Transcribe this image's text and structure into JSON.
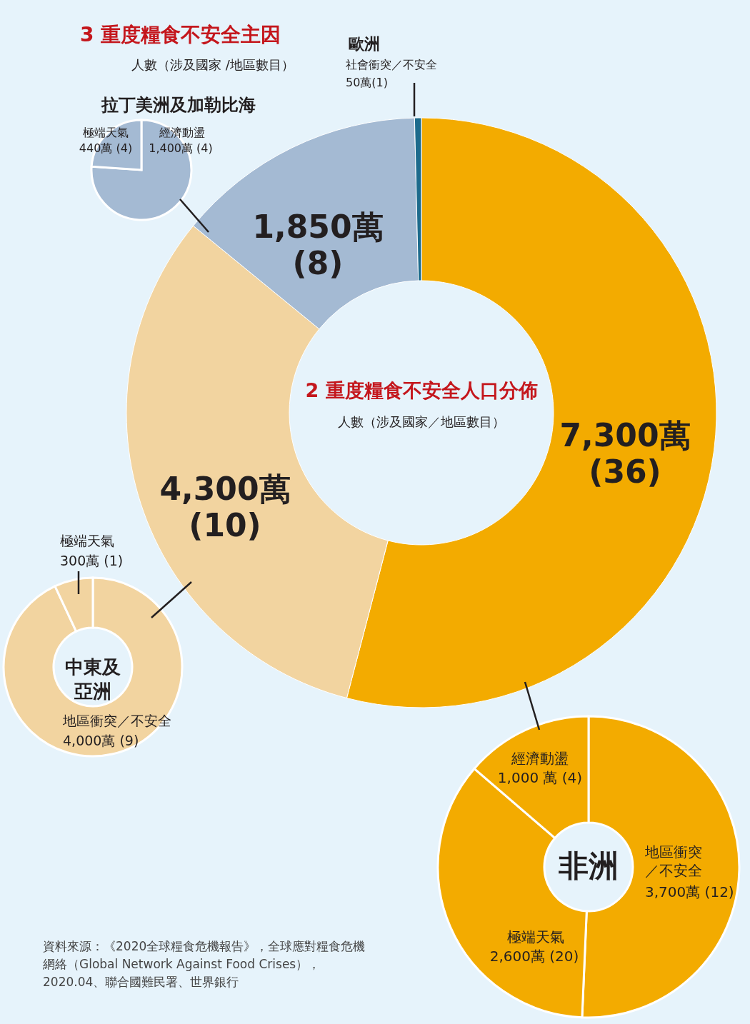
{
  "chart_data": [
    {
      "type": "other",
      "title": "3 重度糧食不安全主因",
      "subtitle": "人數（涉及國家 /地區數目）",
      "annotations": [
        "資料來源：《2020全球糧食危機報告》，全球應對糧食危機網絡（Global Network Against Food Crises），2020.04、聯合國難民署、世界銀行"
      ]
    },
    {
      "type": "other",
      "title": "歐洲",
      "annotations": [
        "社會衝突／不安全",
        "50萬(1)"
      ]
    },
    {
      "type": "pie",
      "title": "拉丁美洲及加勒比海",
      "categories": [
        "經濟動盪",
        "極端天氣"
      ],
      "values": [
        1400,
        440
      ],
      "value_labels": [
        "1,400萬 (4)",
        "440萬 (4)"
      ],
      "colors": [
        "#a4bad3",
        "#a4bad3"
      ]
    },
    {
      "type": "donut",
      "title": "2 重度糧食不安全人口分佈",
      "subtitle": "人數（涉及國家／地區數目）",
      "categories": [
        null,
        null,
        null,
        null
      ],
      "values": [
        7300,
        4300,
        1850,
        50
      ],
      "value_labels": [
        "7,300萬 (36)",
        "4,300萬 (10)",
        "1,850萬 (8)",
        null
      ],
      "colors": [
        "#f3ab00",
        "#f2d4a0",
        "#a4bad3",
        "#1d6b8c"
      ]
    },
    {
      "type": "donut",
      "title": "中東及亞洲",
      "categories": [
        "地區衝突／不安全",
        "極端天氣"
      ],
      "values": [
        4000,
        300
      ],
      "value_labels": [
        "4,000萬 (9)",
        "300萬 (1)"
      ],
      "colors": [
        "#f2d4a0",
        "#f2d4a0"
      ]
    },
    {
      "type": "donut",
      "title": "非洲",
      "categories": [
        "地區衝突／不安全",
        "極端天氣",
        "經濟動盪"
      ],
      "values": [
        3700,
        2600,
        1000
      ],
      "value_labels": [
        "3,700萬 (12)",
        "2,600萬 (20)",
        "1,000 萬 (4)"
      ],
      "colors": [
        "#f3ab00",
        "#f3ab00",
        "#f3ab00"
      ]
    }
  ]
}
